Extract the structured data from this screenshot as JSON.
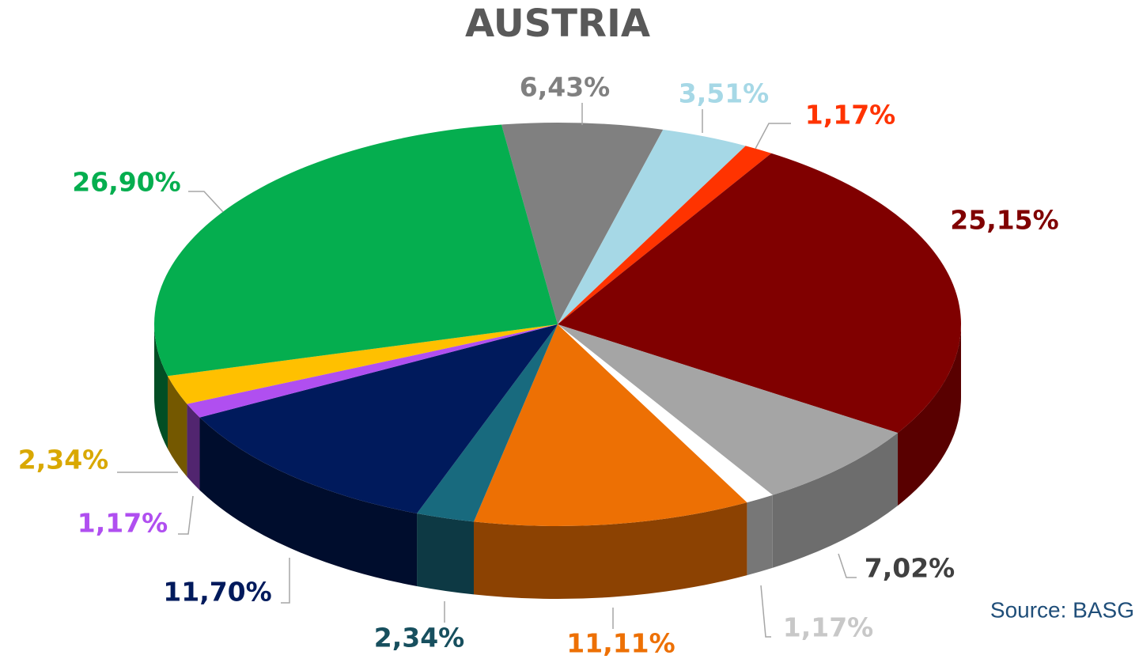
{
  "chart_data": {
    "type": "pie",
    "title": "AUSTRIA",
    "source": "Source: BASG",
    "values": [
      6.43,
      3.51,
      1.17,
      25.15,
      7.02,
      1.17,
      11.11,
      2.34,
      11.7,
      1.17,
      2.34,
      26.9
    ],
    "value_labels": [
      "6,43%",
      "3,51%",
      "1,17%",
      "25,15%",
      "7,02%",
      "1,17%",
      "11,11%",
      "2,34%",
      "11,70%",
      "1,17%",
      "2,34%",
      "26,90%"
    ],
    "colors": [
      "#808080",
      "#a6d8e6",
      "#ff3300",
      "#800000",
      "#a5a5a5",
      "#ffffff",
      "#ed7004",
      "#186a7e",
      "#001a5c",
      "#b04ff0",
      "#ffc000",
      "#05ae4f"
    ],
    "label_colors": [
      "#808080",
      "#a6d8e6",
      "#ff3300",
      "#800000",
      "#404040",
      "#c8c8c8",
      "#ed7004",
      "#174f5e",
      "#001a5c",
      "#b04ff0",
      "#d9a800",
      "#05ae4f"
    ]
  }
}
